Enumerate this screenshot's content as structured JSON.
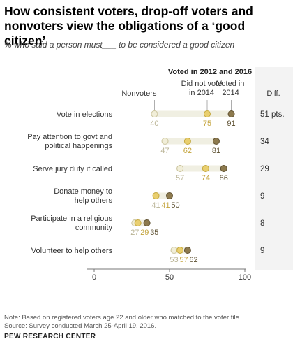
{
  "title": "How consistent voters, drop-off voters and nonvoters view the obligations of a ‘good citizen’",
  "subtitle": "% who said a person must___ to be considered a good citizen",
  "chart_data": {
    "type": "dot",
    "legend": {
      "group_header": "Voted in 2012 and 2016",
      "nonvoters": "Nonvoters",
      "dropoff": "Did not vote in 2014",
      "dropoff_lines": [
        "Did not vote",
        "in 2014"
      ],
      "consistent": "Voted in 2014",
      "consistent_lines": [
        "Voted in",
        "2014"
      ]
    },
    "diff_header": "Diff.",
    "categories": [
      {
        "label": "Vote in elections",
        "lines": [
          "Vote in elections"
        ],
        "nonvoters": 40,
        "dropoff": 75,
        "consistent": 91,
        "diff": "51 pts."
      },
      {
        "label": "Pay attention to govt and political happenings",
        "lines": [
          "Pay attention to govt and",
          "political happenings"
        ],
        "nonvoters": 47,
        "dropoff": 62,
        "consistent": 81,
        "diff": "34"
      },
      {
        "label": "Serve jury duty if called",
        "lines": [
          "Serve jury duty if called"
        ],
        "nonvoters": 57,
        "dropoff": 74,
        "consistent": 86,
        "diff": "29"
      },
      {
        "label": "Donate money to help others",
        "lines": [
          "Donate money to",
          "help others"
        ],
        "nonvoters": 41,
        "dropoff": 41,
        "consistent": 50,
        "diff": "9"
      },
      {
        "label": "Participate in a religious community",
        "lines": [
          "Participate in a religious",
          "community"
        ],
        "nonvoters": 27,
        "dropoff": 29,
        "consistent": 35,
        "diff": "8"
      },
      {
        "label": "Volunteer to help others",
        "lines": [
          "Volunteer to help others"
        ],
        "nonvoters": 53,
        "dropoff": 57,
        "consistent": 62,
        "diff": "9"
      }
    ],
    "x_ticks": [
      0,
      50,
      100
    ],
    "xlim": [
      0,
      100
    ],
    "colors": {
      "nonvoters_fill": "#f1eed8",
      "nonvoters_stroke": "#c9c29a",
      "dropoff_fill": "#e9cf6f",
      "dropoff_stroke": "#c5a83e",
      "consistent_fill": "#8d7a4e",
      "consistent_stroke": "#5f5030",
      "range_bar": "#f0efe2",
      "nonvoters_label": "#b9b394",
      "dropoff_label": "#c4a43c",
      "consistent_label": "#5b4e2e"
    }
  },
  "note": "Note: Based on registered voters age 22 and older who matched to the voter file.",
  "source": "Source: Survey conducted March 25-April 19, 2016.",
  "org": "PEW RESEARCH CENTER"
}
